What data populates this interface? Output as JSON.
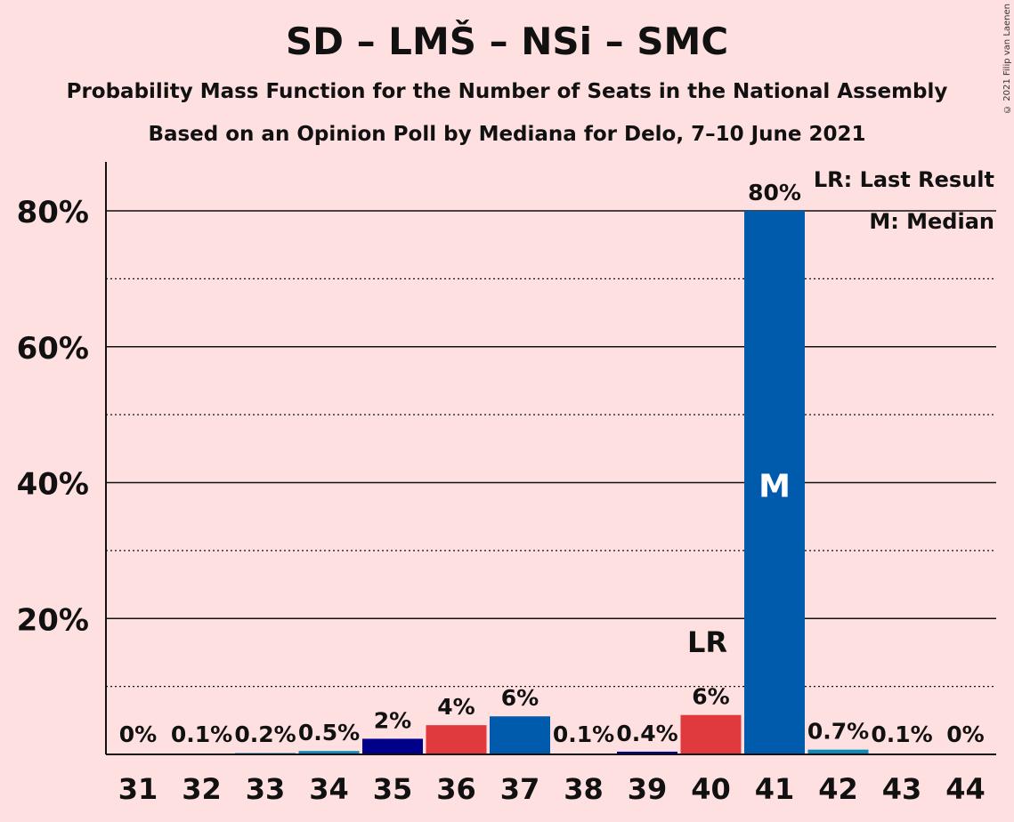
{
  "title": "SD – LMŠ – NSi – SMC",
  "subtitle_1": "Probability Mass Function for the Number of Seats in the National Assembly",
  "subtitle_2": "Based on an Opinion Poll by Mediana for Delo, 7–10 June 2021",
  "copyright": "© 2021 Filip van Laenen",
  "legend": {
    "lr": "LR: Last Result",
    "m": "M: Median"
  },
  "colors": {
    "background": "#ffe0e0",
    "navy": "#00008b",
    "red": "#e0393e",
    "blue": "#005bac",
    "teal": "#0f8ab8"
  },
  "chart_data": {
    "type": "bar",
    "categories": [
      "31",
      "32",
      "33",
      "34",
      "35",
      "36",
      "37",
      "38",
      "39",
      "40",
      "41",
      "42",
      "43",
      "44"
    ],
    "values": [
      0,
      0.1,
      0.2,
      0.5,
      2.3,
      4.3,
      5.6,
      0.1,
      0.4,
      5.8,
      80,
      0.7,
      0.1,
      0
    ],
    "labels": [
      "0%",
      "0.1%",
      "0.2%",
      "0.5%",
      "2%",
      "4%",
      "6%",
      "0.1%",
      "0.4%",
      "6%",
      "80%",
      "0.7%",
      "0.1%",
      "0%"
    ],
    "colors": [
      "#0f8ab8",
      "#0f8ab8",
      "#0f8ab8",
      "#0f8ab8",
      "#00008b",
      "#e0393e",
      "#005bac",
      "#0f8ab8",
      "#00008b",
      "#e0393e",
      "#005bac",
      "#0f8ab8",
      "#0f8ab8",
      "#0f8ab8"
    ],
    "ylim": [
      0,
      87
    ],
    "yticks": [
      20,
      40,
      60,
      80
    ],
    "ytick_labels": [
      "20%",
      "40%",
      "60%",
      "80%"
    ],
    "minor_gridlines": [
      10,
      30,
      50,
      70
    ],
    "last_result_seat": "40",
    "last_result_label": "LR",
    "median_seat": "41",
    "median_label": "M",
    "legend_position": "top-right"
  }
}
